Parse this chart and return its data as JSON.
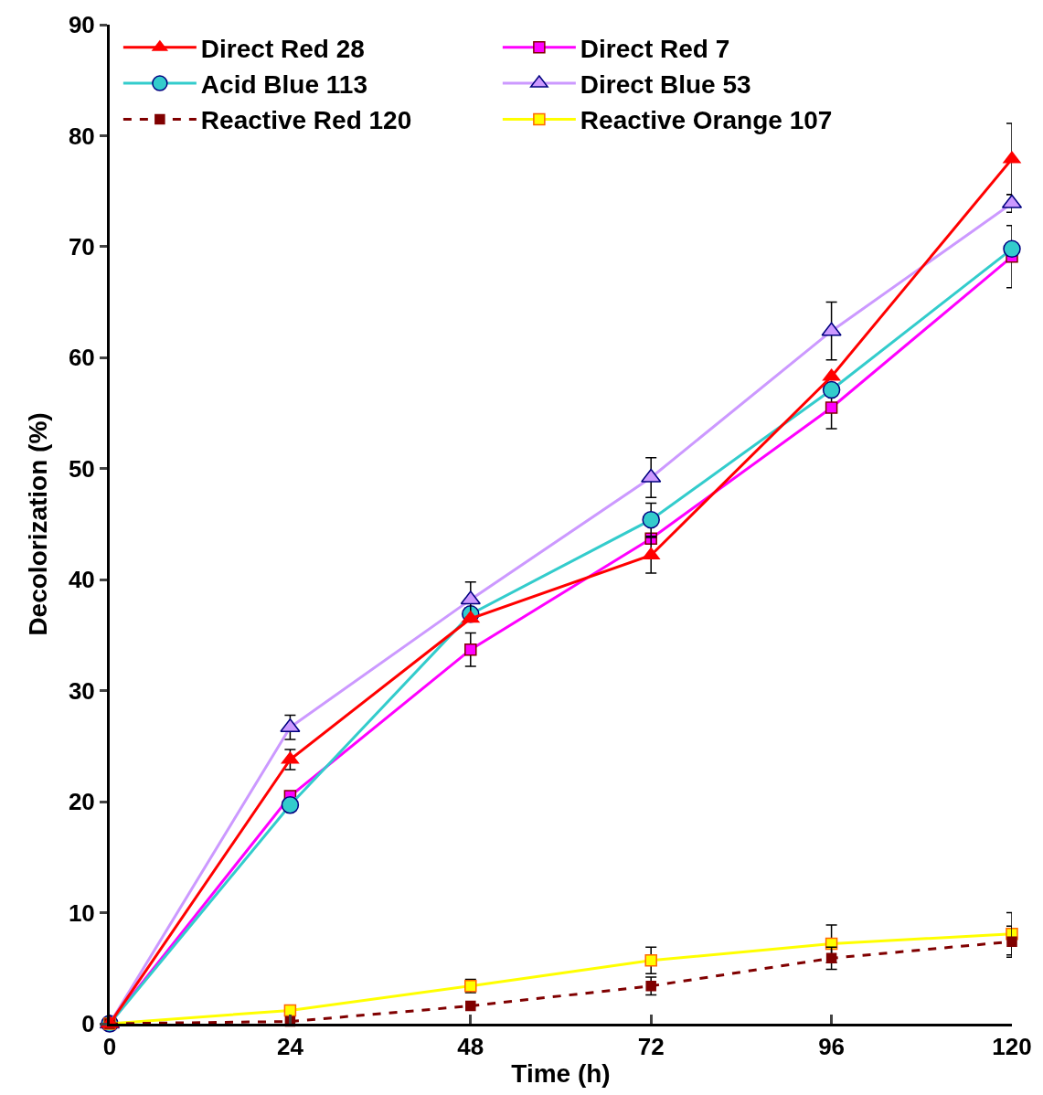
{
  "chart_data": {
    "type": "line",
    "xlabel": "Time (h)",
    "ylabel": "Decolorization (%)",
    "x": [
      0,
      24,
      48,
      72,
      96,
      120
    ],
    "xlim": [
      0,
      120
    ],
    "xticks": [
      0,
      24,
      48,
      72,
      96,
      120
    ],
    "ylim": [
      0,
      90
    ],
    "yticks": [
      0,
      10,
      20,
      30,
      40,
      50,
      60,
      70,
      80,
      90
    ],
    "grid": false,
    "legend": "top left",
    "series": [
      {
        "name": "Direct Red 28",
        "color": "#ff0000",
        "marker": "triangle",
        "line_style": "solid",
        "values": [
          0,
          23.8,
          36.5,
          42.2,
          58.3,
          77.9
        ],
        "errors": [
          null,
          0.9,
          null,
          1.6,
          null,
          3.2
        ]
      },
      {
        "name": "Direct Red 7",
        "color": "#ff00ff",
        "marker": "square",
        "line_style": "solid",
        "values": [
          0,
          20.5,
          33.7,
          43.7,
          55.5,
          69.1
        ],
        "errors": [
          null,
          null,
          1.5,
          null,
          1.9,
          2.8
        ]
      },
      {
        "name": "Acid Blue 113",
        "color": "#33cccc",
        "marker": "circle",
        "line_style": "solid",
        "values": [
          0,
          19.7,
          36.9,
          45.4,
          57.1,
          69.8
        ],
        "errors": [
          null,
          null,
          null,
          1.5,
          null,
          null
        ]
      },
      {
        "name": "Direct Blue 53",
        "color": "#cc99ff",
        "marker": "triangle",
        "line_style": "solid",
        "values": [
          0,
          26.7,
          38.2,
          49.2,
          62.4,
          73.9
        ],
        "errors": [
          null,
          1.1,
          1.6,
          1.8,
          2.6,
          0.8
        ]
      },
      {
        "name": "Reactive Red 120",
        "color": "#800000",
        "marker": "square",
        "line_style": "dashed",
        "values": [
          0,
          0.2,
          1.6,
          3.4,
          5.9,
          7.4
        ],
        "errors": [
          null,
          null,
          null,
          0.8,
          1.0,
          1.4
        ]
      },
      {
        "name": "Reactive Orange 107",
        "color": "#ffff00",
        "marker": "square",
        "line_style": "solid",
        "values": [
          0,
          1.2,
          3.4,
          5.7,
          7.2,
          8.1
        ],
        "errors": [
          null,
          null,
          0.6,
          1.2,
          1.7,
          1.9
        ]
      }
    ]
  }
}
